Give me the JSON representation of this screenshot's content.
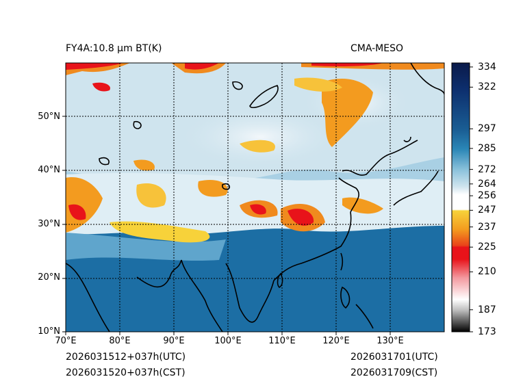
{
  "header": {
    "product": "FY4A:10.8 μm BT(K)",
    "model": "CMA-MESO"
  },
  "footer": {
    "init_utc": "2026031512+037h(UTC)",
    "init_cst": "2026031520+037h(CST)",
    "valid_utc": "2026031701(UTC)",
    "valid_cst": "2026031709(CST)"
  },
  "map": {
    "lon_range": [
      70,
      140
    ],
    "lat_range": [
      10,
      60
    ],
    "lat_labels": [
      {
        "value": 50,
        "text": "50°N"
      },
      {
        "value": 40,
        "text": "40°N"
      },
      {
        "value": 30,
        "text": "30°N"
      },
      {
        "value": 20,
        "text": "20°N"
      },
      {
        "value": 10,
        "text": "10°N"
      }
    ],
    "lon_labels": [
      {
        "value": 70,
        "text": "70°E"
      },
      {
        "value": 80,
        "text": "80°E"
      },
      {
        "value": 90,
        "text": "90°E"
      },
      {
        "value": 100,
        "text": "100°E"
      },
      {
        "value": 110,
        "text": "110°E"
      },
      {
        "value": 120,
        "text": "120°E"
      },
      {
        "value": 130,
        "text": "130°E"
      }
    ]
  },
  "colorbar": {
    "range": [
      173,
      340
    ],
    "labels": [
      {
        "value": 334,
        "text": "334"
      },
      {
        "value": 322,
        "text": "322"
      },
      {
        "value": 297,
        "text": "297"
      },
      {
        "value": 285,
        "text": "285"
      },
      {
        "value": 272,
        "text": "272"
      },
      {
        "value": 264,
        "text": "264"
      },
      {
        "value": 256,
        "text": "256"
      },
      {
        "value": 247,
        "text": "247"
      },
      {
        "value": 237,
        "text": "237"
      },
      {
        "value": 225,
        "text": "225"
      },
      {
        "value": 210,
        "text": "210"
      },
      {
        "value": 187,
        "text": "187"
      },
      {
        "value": 173,
        "text": "173"
      }
    ]
  },
  "colors": {
    "sea": "#1c6ea4",
    "cloud_light": "#dceaf3",
    "cold_top": "#f08a1e",
    "very_cold": "#e8131a",
    "coast": "#000000"
  }
}
